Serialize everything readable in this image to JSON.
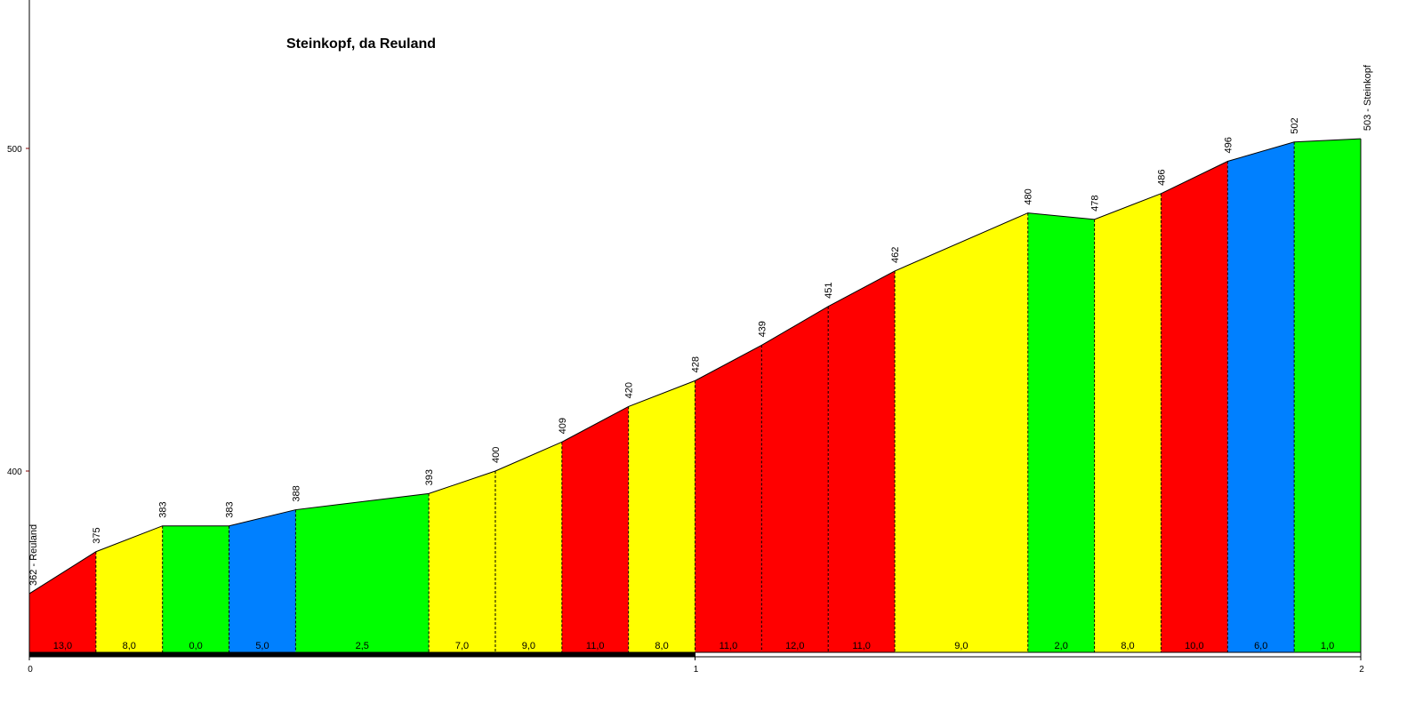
{
  "chart_data": {
    "type": "area",
    "title": "Steinkopf, da Reuland",
    "xlabel": "",
    "ylabel": "",
    "x_ticks": [
      "0",
      "1",
      "2"
    ],
    "y_ticks": [
      "400",
      "500"
    ],
    "xlim": [
      0,
      2
    ],
    "ylim": [
      343,
      547
    ],
    "grid": false,
    "points": [
      {
        "x": 0.0,
        "elev": 362,
        "label": "362 - Reuland"
      },
      {
        "x": 0.1,
        "elev": 375,
        "label": "375"
      },
      {
        "x": 0.2,
        "elev": 383,
        "label": "383"
      },
      {
        "x": 0.3,
        "elev": 383,
        "label": "383"
      },
      {
        "x": 0.4,
        "elev": 388,
        "label": "388"
      },
      {
        "x": 0.6,
        "elev": 393,
        "label": "393"
      },
      {
        "x": 0.7,
        "elev": 400,
        "label": "400"
      },
      {
        "x": 0.8,
        "elev": 409,
        "label": "409"
      },
      {
        "x": 0.9,
        "elev": 420,
        "label": "420"
      },
      {
        "x": 1.0,
        "elev": 428,
        "label": "428"
      },
      {
        "x": 1.1,
        "elev": 439,
        "label": "439"
      },
      {
        "x": 1.2,
        "elev": 451,
        "label": "451"
      },
      {
        "x": 1.3,
        "elev": 462,
        "label": "462"
      },
      {
        "x": 1.5,
        "elev": 480,
        "label": "480"
      },
      {
        "x": 1.6,
        "elev": 478,
        "label": "478"
      },
      {
        "x": 1.7,
        "elev": 486,
        "label": "486"
      },
      {
        "x": 1.8,
        "elev": 496,
        "label": "496"
      },
      {
        "x": 1.9,
        "elev": 502,
        "label": "502"
      },
      {
        "x": 2.0,
        "elev": 503,
        "label": "503 - Steinkopf"
      }
    ],
    "segments": [
      {
        "gradient": "13,0",
        "color": "#ff0000"
      },
      {
        "gradient": "8,0",
        "color": "#ffff00"
      },
      {
        "gradient": "0,0",
        "color": "#00ff00"
      },
      {
        "gradient": "5,0",
        "color": "#0080ff"
      },
      {
        "gradient": "2,5",
        "color": "#00ff00"
      },
      {
        "gradient": "7,0",
        "color": "#ffff00"
      },
      {
        "gradient": "9,0",
        "color": "#ffff00"
      },
      {
        "gradient": "11,0",
        "color": "#ff0000"
      },
      {
        "gradient": "8,0",
        "color": "#ffff00"
      },
      {
        "gradient": "11,0",
        "color": "#ff0000"
      },
      {
        "gradient": "12,0",
        "color": "#ff0000"
      },
      {
        "gradient": "11,0",
        "color": "#ff0000"
      },
      {
        "gradient": "9,0",
        "color": "#ffff00"
      },
      {
        "gradient": "2,0",
        "color": "#00ff00"
      },
      {
        "gradient": "8,0",
        "color": "#ffff00"
      },
      {
        "gradient": "10,0",
        "color": "#ff0000"
      },
      {
        "gradient": "6,0",
        "color": "#0080ff"
      },
      {
        "gradient": "1,0",
        "color": "#00ff00"
      }
    ],
    "colors": {
      "red": "#ff0000",
      "yellow": "#ffff00",
      "green": "#00ff00",
      "blue": "#0080ff",
      "y_tick_marks": "#800000",
      "outline": "#000000"
    }
  }
}
